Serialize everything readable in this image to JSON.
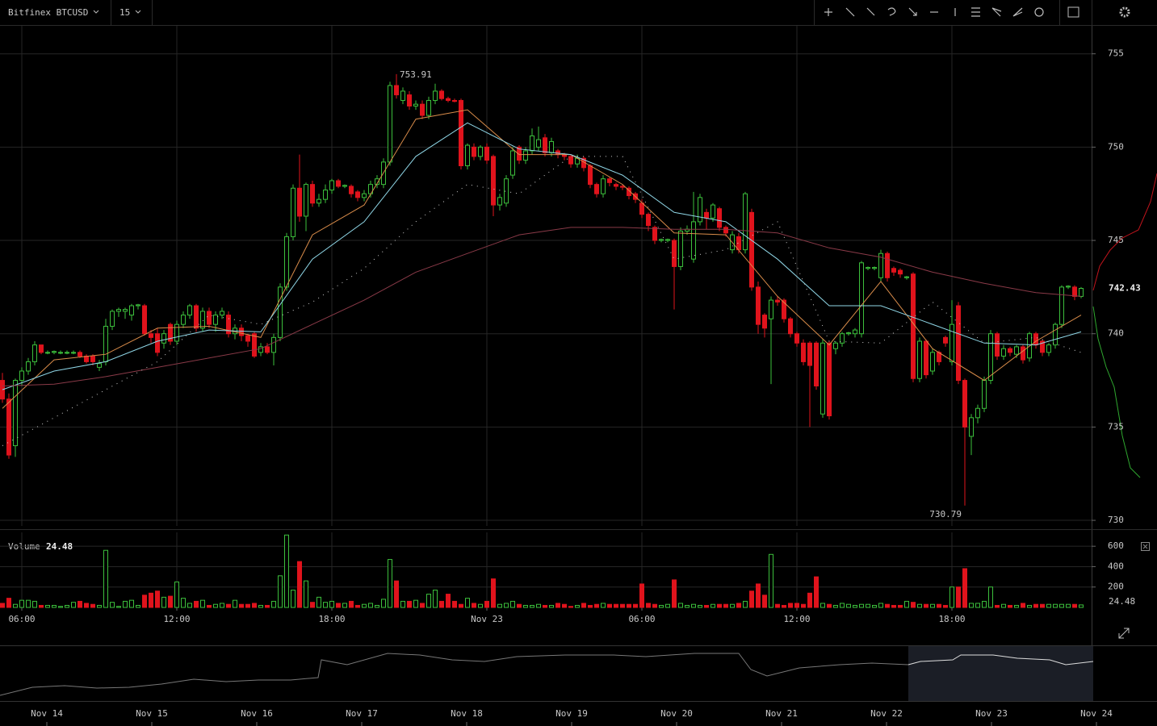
{
  "toolbar": {
    "symbol": "Bitfinex BTCUSD",
    "interval": "15"
  },
  "chart_data": {
    "type": "candlestick",
    "ylim": [
      729.7,
      756.5
    ],
    "yticks": [
      730,
      735,
      740,
      745,
      750,
      755
    ],
    "xlim": [
      -0.5,
      168.5
    ],
    "xticks": [
      {
        "value": 3,
        "label": "06:00"
      },
      {
        "value": 27,
        "label": "12:00"
      },
      {
        "value": 51,
        "label": "18:00"
      },
      {
        "value": 75,
        "label": "Nov 23"
      },
      {
        "value": 99,
        "label": "06:00"
      },
      {
        "value": 123,
        "label": "12:00"
      },
      {
        "value": 147,
        "label": "18:00"
      }
    ],
    "up_color": "#3cbf3c",
    "down_color": "#e0131c",
    "grid": true,
    "ohlc": [
      [
        737.5,
        737.9,
        736.3,
        736.5
      ],
      [
        736.5,
        736.8,
        733.3,
        733.5
      ],
      [
        734,
        737.6,
        733.4,
        737.5
      ],
      [
        737.5,
        738.2,
        737.2,
        738
      ],
      [
        738,
        738.7,
        737.8,
        738.5
      ],
      [
        738.5,
        739.6,
        738.3,
        739.4
      ],
      [
        739.4,
        739.4,
        738.9,
        739
      ],
      [
        739,
        739.1,
        738.9,
        739
      ],
      [
        739,
        739.1,
        738.9,
        739.05
      ],
      [
        739,
        739.1,
        738.9,
        739
      ],
      [
        739,
        739.1,
        738.9,
        739
      ],
      [
        739,
        739.1,
        738.9,
        739
      ],
      [
        739,
        739.1,
        738.7,
        738.8
      ],
      [
        738.8,
        738.9,
        738.4,
        738.5
      ],
      [
        738.8,
        738.9,
        738.3,
        738.5
      ],
      [
        738.2,
        738.6,
        738,
        738.4
      ],
      [
        738.5,
        740.8,
        738.3,
        740.4
      ],
      [
        740.4,
        741.3,
        740.2,
        741.2
      ],
      [
        741.2,
        741.4,
        740.9,
        741.3
      ],
      [
        741.2,
        741.4,
        740.8,
        741.3
      ],
      [
        741,
        741.6,
        740.7,
        741.5
      ],
      [
        741.5,
        741.6,
        741.3,
        741.55
      ],
      [
        741.5,
        741.6,
        739.9,
        740
      ],
      [
        740,
        740.2,
        739.5,
        739.8
      ],
      [
        740,
        740.3,
        738.8,
        739
      ],
      [
        739.5,
        740.2,
        739.2,
        740
      ],
      [
        740.5,
        740.6,
        739.4,
        739.6
      ],
      [
        739.6,
        740.7,
        739.4,
        740.5
      ],
      [
        740.5,
        741.2,
        740.3,
        741
      ],
      [
        741,
        741.6,
        740.8,
        741.5
      ],
      [
        741.5,
        741.6,
        740.1,
        740.3
      ],
      [
        740.3,
        741.4,
        740.1,
        741.2
      ],
      [
        741.2,
        741.4,
        740.3,
        740.5
      ],
      [
        740.5,
        741.2,
        740.1,
        741
      ],
      [
        741,
        741.4,
        740.8,
        741.2
      ],
      [
        741,
        741.2,
        739.8,
        740
      ],
      [
        740,
        740.5,
        739.7,
        740.3
      ],
      [
        740.3,
        740.5,
        739.6,
        739.9
      ],
      [
        739.9,
        740,
        739.3,
        739.6
      ],
      [
        740,
        740.1,
        738.7,
        738.8
      ],
      [
        739,
        739.5,
        738.8,
        739.3
      ],
      [
        739.3,
        739.5,
        738.9,
        739
      ],
      [
        739,
        740,
        738.3,
        739.8
      ],
      [
        739.8,
        742.7,
        739.6,
        742.5
      ],
      [
        742.5,
        745.4,
        742.3,
        745.2
      ],
      [
        745.2,
        748,
        745,
        747.8
      ],
      [
        747.8,
        749.6,
        746,
        746.3
      ],
      [
        746.3,
        748.1,
        745.5,
        748
      ],
      [
        748,
        748.2,
        746.8,
        747
      ],
      [
        747,
        747.5,
        746.8,
        747.2
      ],
      [
        747.2,
        748,
        747,
        747.7
      ],
      [
        747.7,
        748.3,
        747.5,
        748.2
      ],
      [
        748.2,
        748.3,
        747.8,
        747.9
      ],
      [
        747.9,
        748,
        747.8,
        747.95
      ],
      [
        747.9,
        748,
        747.3,
        747.5
      ],
      [
        747.6,
        747.7,
        747.1,
        747.3
      ],
      [
        747.3,
        747.7,
        747.1,
        747.5
      ],
      [
        747.5,
        748.2,
        747.3,
        748
      ],
      [
        748,
        748.5,
        747.8,
        748.3
      ],
      [
        748,
        749.4,
        747.8,
        749.2
      ],
      [
        749.2,
        753.5,
        749,
        753.3
      ],
      [
        753.3,
        753.91,
        752.6,
        752.8
      ],
      [
        752.5,
        753.2,
        752.3,
        753
      ],
      [
        752.8,
        753,
        752,
        752.2
      ],
      [
        752.2,
        752.5,
        752,
        752.3
      ],
      [
        752.3,
        752.5,
        751.5,
        751.7
      ],
      [
        751.7,
        752.7,
        751.5,
        752.5
      ],
      [
        752.5,
        753.4,
        752.3,
        753
      ],
      [
        753,
        753.1,
        752.5,
        752.6
      ],
      [
        752.6,
        752.7,
        752.4,
        752.5
      ],
      [
        752.5,
        752.6,
        752.4,
        752.45
      ],
      [
        752.5,
        752.6,
        748.8,
        749
      ],
      [
        749,
        750.2,
        748.8,
        750.1
      ],
      [
        750,
        750.2,
        749.3,
        749.5
      ],
      [
        749.5,
        750.1,
        749.3,
        750
      ],
      [
        750,
        750.2,
        749.1,
        749.3
      ],
      [
        749.5,
        749.6,
        746.3,
        746.9
      ],
      [
        746.9,
        747.5,
        746.6,
        747.3
      ],
      [
        747,
        748.5,
        746.8,
        748.3
      ],
      [
        748.5,
        750,
        748.3,
        749.8
      ],
      [
        750,
        750.1,
        749.1,
        749.3
      ],
      [
        749.3,
        750,
        749.1,
        749.8
      ],
      [
        749.8,
        751,
        749.6,
        750.6
      ],
      [
        750,
        751.1,
        749.8,
        750.4
      ],
      [
        750.5,
        750.7,
        749.5,
        749.7
      ],
      [
        749.7,
        750.5,
        749.5,
        750.3
      ],
      [
        749.8,
        749.9,
        749.4,
        749.6
      ],
      [
        749.6,
        749.7,
        749.3,
        749.5
      ],
      [
        749.5,
        749.6,
        748.9,
        749.1
      ],
      [
        749.1,
        749.6,
        748.9,
        749.4
      ],
      [
        749.4,
        749.5,
        748.7,
        748.9
      ],
      [
        749,
        749.1,
        747.8,
        748
      ],
      [
        748,
        748.1,
        747.3,
        747.5
      ],
      [
        747.5,
        748.5,
        747.3,
        748.3
      ],
      [
        748.3,
        748.4,
        747.9,
        748.1
      ],
      [
        748,
        748.1,
        747.7,
        747.9
      ],
      [
        747.9,
        748,
        747.7,
        747.85
      ],
      [
        747.8,
        747.9,
        747.2,
        747.4
      ],
      [
        747.5,
        747.6,
        747,
        747.2
      ],
      [
        747,
        747.2,
        746.2,
        746.4
      ],
      [
        746.4,
        746.5,
        745.5,
        745.8
      ],
      [
        745.7,
        745.8,
        744.8,
        745
      ],
      [
        745,
        745.1,
        744.9,
        745.05
      ],
      [
        745,
        745.1,
        744.9,
        745.05
      ],
      [
        745,
        745.1,
        741.3,
        743.6
      ],
      [
        743.6,
        745.7,
        743.4,
        745.5
      ],
      [
        745.5,
        745.8,
        745.3,
        745.6
      ],
      [
        744,
        747.6,
        743.8,
        746
      ],
      [
        746,
        747.5,
        745.8,
        747.3
      ],
      [
        746.5,
        746.7,
        745.6,
        746.2
      ],
      [
        746.2,
        747,
        746,
        746.9
      ],
      [
        746.7,
        746.8,
        745.5,
        745.7
      ],
      [
        745.7,
        745.8,
        745.2,
        745.4
      ],
      [
        744.5,
        745.5,
        744.3,
        745.3
      ],
      [
        745.2,
        745.4,
        744.3,
        744.5
      ],
      [
        744.5,
        747.6,
        744.3,
        747.5
      ],
      [
        746.5,
        746.7,
        742.3,
        742.5
      ],
      [
        742.5,
        742.8,
        740,
        740.5
      ],
      [
        741,
        741.1,
        739.8,
        740.3
      ],
      [
        740.8,
        742,
        737.3,
        741.8
      ],
      [
        741.8,
        742,
        741.5,
        741.7
      ],
      [
        741.8,
        741.9,
        740.6,
        740.8
      ],
      [
        740.8,
        740.9,
        739.8,
        740
      ],
      [
        740,
        740.1,
        739.3,
        739.5
      ],
      [
        739.5,
        739.7,
        738.3,
        738.5
      ],
      [
        739.5,
        739.6,
        735,
        738.3
      ],
      [
        739.5,
        739.6,
        737,
        737.2
      ],
      [
        735.7,
        739.7,
        735.5,
        739.5
      ],
      [
        739.5,
        739.6,
        735.4,
        735.6
      ],
      [
        739.2,
        739.6,
        738.9,
        739.5
      ],
      [
        739.5,
        740.1,
        739.3,
        740
      ],
      [
        740,
        740.1,
        739.9,
        740.05
      ],
      [
        740,
        740.3,
        739.8,
        740.2
      ],
      [
        740,
        743.9,
        739.8,
        743.8
      ],
      [
        743.5,
        743.6,
        743.4,
        743.55
      ],
      [
        743.5,
        743.6,
        743.4,
        743.55
      ],
      [
        743,
        744.5,
        742.8,
        744.3
      ],
      [
        744.3,
        744.4,
        742.8,
        743
      ],
      [
        743.5,
        743.6,
        743.1,
        743.3
      ],
      [
        743.4,
        743.5,
        743,
        743.2
      ],
      [
        743,
        743.1,
        742.9,
        743.05
      ],
      [
        743.2,
        743.3,
        737.4,
        737.6
      ],
      [
        737.6,
        739.8,
        737.4,
        739.6
      ],
      [
        739.6,
        739.7,
        737.6,
        737.8
      ],
      [
        738,
        739.2,
        737.8,
        739
      ],
      [
        739,
        739.1,
        738.3,
        738.5
      ],
      [
        739.8,
        739.9,
        739.3,
        739.5
      ],
      [
        738.5,
        741.8,
        738.3,
        740.5
      ],
      [
        741.5,
        741.7,
        737.3,
        737.5
      ],
      [
        737.5,
        737.6,
        730.79,
        735
      ],
      [
        734.5,
        735.7,
        733.5,
        735.5
      ],
      [
        735.5,
        736.2,
        735.2,
        736
      ],
      [
        736,
        737.7,
        735.8,
        737.5
      ],
      [
        737.5,
        740.2,
        737.3,
        740
      ],
      [
        740,
        740.1,
        738.6,
        738.8
      ],
      [
        738.8,
        739.4,
        738.6,
        739.2
      ],
      [
        739.2,
        739.3,
        738.8,
        739
      ],
      [
        738.9,
        739.4,
        738.7,
        739.3
      ],
      [
        739.3,
        739.4,
        738.4,
        738.6
      ],
      [
        738.7,
        740.1,
        738.5,
        740
      ],
      [
        740,
        740.1,
        739.2,
        739.4
      ],
      [
        739.6,
        739.7,
        738.8,
        739
      ],
      [
        739,
        739.5,
        738.8,
        739.4
      ],
      [
        739.4,
        740.6,
        739.2,
        740.5
      ],
      [
        740.5,
        742.6,
        740.3,
        742.5
      ],
      [
        742.5,
        742.6,
        742.4,
        742.55
      ],
      [
        742.5,
        742.6,
        741.8,
        742
      ],
      [
        742,
        742.5,
        741.9,
        742.43
      ]
    ],
    "overlay_x": [
      0,
      8,
      16,
      24,
      32,
      40,
      48,
      56,
      64,
      72,
      80,
      88,
      96,
      104,
      112,
      120,
      128,
      136,
      144,
      152,
      160,
      167
    ],
    "overlays": [
      {
        "color": "#d98c4a",
        "dotted": false,
        "values": [
          736,
          738.6,
          738.9,
          740.3,
          740.4,
          739.8,
          745.3,
          746.9,
          751.5,
          752,
          749.6,
          749.6,
          748,
          745.4,
          745.3,
          742,
          739.4,
          742.8,
          739.2,
          737.5,
          739.6,
          741
        ]
      },
      {
        "color": "#8fd6e6",
        "dotted": false,
        "values": [
          737,
          738,
          738.5,
          739.6,
          740.2,
          740.1,
          744,
          746,
          749.5,
          751.3,
          749.9,
          749.6,
          748.5,
          746.5,
          746,
          744,
          741.5,
          741.5,
          740.5,
          739.5,
          739.4,
          740.1
        ]
      },
      {
        "color": "#8a3a48",
        "dotted": false,
        "values": [
          737.2,
          737.3,
          737.7,
          738.2,
          738.7,
          739.2,
          740.5,
          741.8,
          743.3,
          744.3,
          745.3,
          745.7,
          745.7,
          745.6,
          745.6,
          745.4,
          744.6,
          744.1,
          743.3,
          742.7,
          742.2,
          742
        ]
      },
      {
        "color": "#cccccc",
        "dotted": true,
        "values": [
          734,
          735.5,
          737,
          738.5,
          741,
          740.5,
          741.7,
          743.5,
          746,
          748,
          747.5,
          749.5,
          749.5,
          744,
          744.5,
          746,
          739.6,
          739.5,
          741.7,
          739.5,
          739.8,
          739
        ]
      }
    ],
    "volume_title": "Volume",
    "vlim": [
      0,
      720
    ],
    "vticks": [
      200,
      400,
      600
    ],
    "volume": [
      40,
      90,
      30,
      70,
      70,
      60,
      20,
      20,
      20,
      10,
      20,
      50,
      60,
      40,
      30,
      20,
      560,
      50,
      10,
      60,
      70,
      20,
      120,
      140,
      160,
      100,
      110,
      250,
      90,
      40,
      60,
      70,
      20,
      30,
      40,
      30,
      70,
      30,
      30,
      40,
      20,
      20,
      60,
      310,
      710,
      170,
      450,
      260,
      50,
      100,
      50,
      60,
      40,
      40,
      60,
      20,
      30,
      40,
      20,
      80,
      470,
      260,
      60,
      60,
      70,
      40,
      130,
      170,
      60,
      130,
      60,
      30,
      90,
      40,
      30,
      60,
      280,
      30,
      40,
      60,
      30,
      20,
      20,
      30,
      20,
      20,
      40,
      30,
      10,
      20,
      40,
      20,
      30,
      40,
      30,
      30,
      30,
      30,
      30,
      230,
      40,
      30,
      20,
      30,
      270,
      40,
      20,
      30,
      20,
      20,
      30,
      30,
      30,
      30,
      40,
      60,
      160,
      230,
      120,
      520,
      30,
      20,
      40,
      40,
      30,
      140,
      300,
      40,
      30,
      20,
      40,
      30,
      20,
      30,
      30,
      20,
      40,
      30,
      20,
      20,
      60,
      50,
      30,
      30,
      30,
      30,
      20,
      200,
      200,
      380,
      40,
      40,
      60,
      200,
      20,
      30,
      20,
      20,
      40,
      20,
      30,
      30,
      30,
      30,
      30,
      30,
      30,
      24.48
    ],
    "navigator_dates": [
      "Nov 14",
      "Nov 15",
      "Nov 16",
      "Nov 17",
      "Nov 18",
      "Nov 19",
      "Nov 20",
      "Nov 21",
      "Nov 22",
      "Nov 23",
      "Nov 24"
    ]
  }
}
